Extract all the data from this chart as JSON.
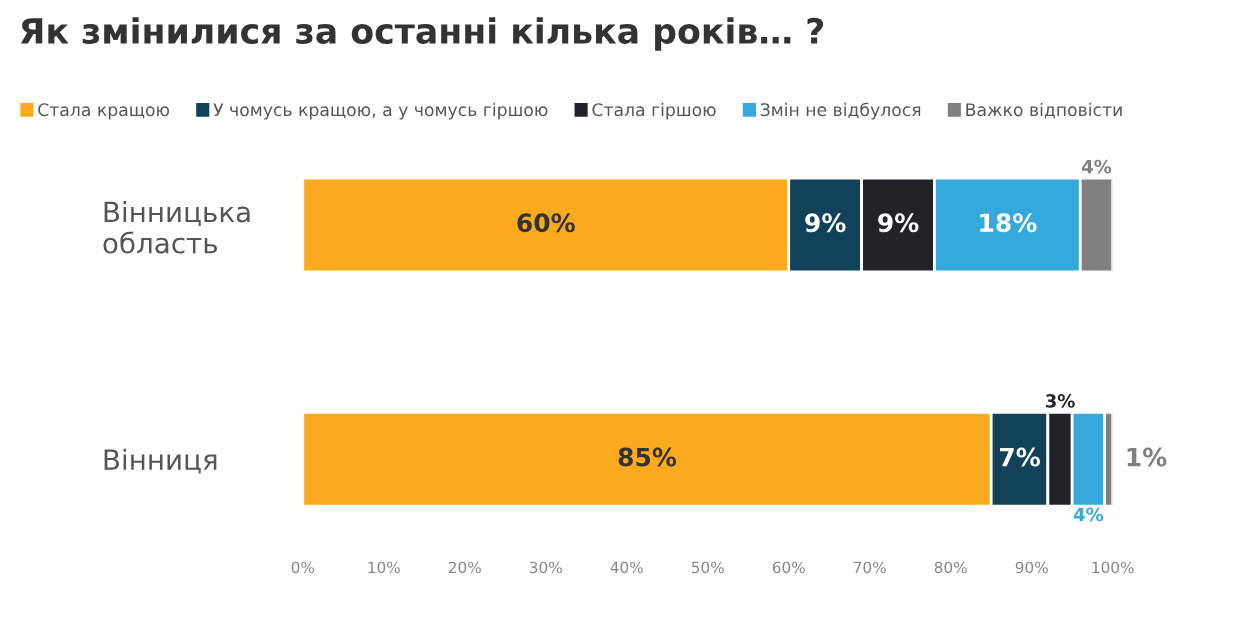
{
  "chart_data": {
    "type": "bar",
    "orientation": "horizontal",
    "stacked": true,
    "title": "Як змінилися за останні кілька років… ?",
    "categories": [
      "Вінницька\nобласть",
      "Вінниця"
    ],
    "series": [
      {
        "name": "Стала кращою",
        "color": "#fbaa1f",
        "values": [
          60,
          85
        ],
        "value_labels": [
          "60%",
          "85%"
        ]
      },
      {
        "name": "У чомусь кращою, а у чомусь гіршою",
        "color": "#12415a",
        "values": [
          9,
          7
        ],
        "value_labels": [
          "9%",
          "7%"
        ]
      },
      {
        "name": "Стала гіршою",
        "color": "#232228",
        "values": [
          9,
          3
        ],
        "value_labels": [
          "9%",
          "3%"
        ]
      },
      {
        "name": "Змін не відбулося",
        "color": "#35a8dc",
        "values": [
          18,
          4
        ],
        "value_labels": [
          "18%",
          "4%"
        ]
      },
      {
        "name": "Важко відповісти",
        "color": "#808080",
        "values": [
          4,
          1
        ],
        "value_labels": [
          "4%",
          "1%"
        ]
      }
    ],
    "xlim": [
      0,
      100
    ],
    "xticks": [
      {
        "value": 0,
        "label": "0%"
      },
      {
        "value": 10,
        "label": "10%"
      },
      {
        "value": 20,
        "label": "20%"
      },
      {
        "value": 30,
        "label": "30%"
      },
      {
        "value": 40,
        "label": "40%"
      },
      {
        "value": 50,
        "label": "50%"
      },
      {
        "value": 60,
        "label": "60%"
      },
      {
        "value": 70,
        "label": "70%"
      },
      {
        "value": 80,
        "label": "80%"
      },
      {
        "value": 90,
        "label": "90%"
      },
      {
        "value": 100,
        "label": "100%"
      }
    ],
    "legend": "top",
    "grid": false
  }
}
